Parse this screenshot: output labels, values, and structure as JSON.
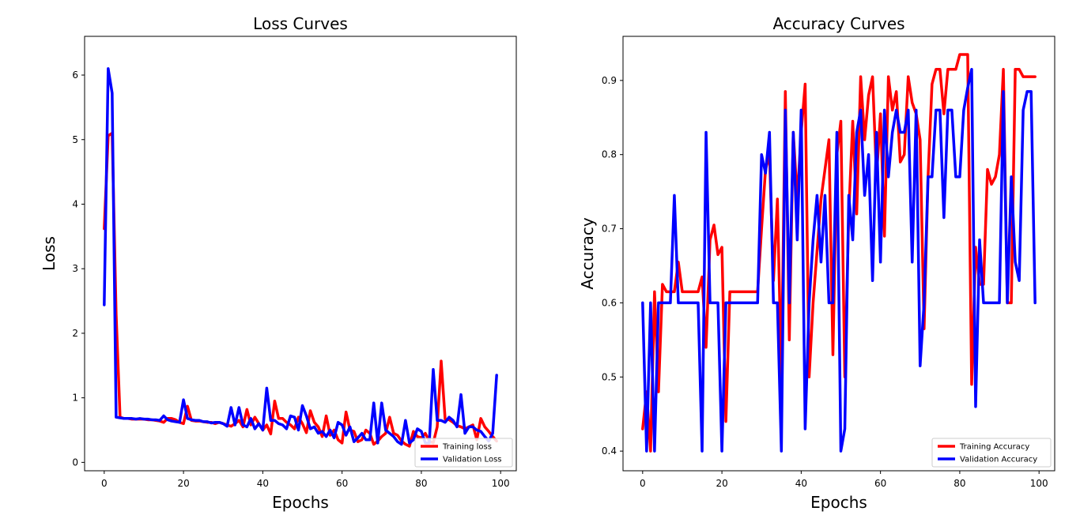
{
  "chart_data": [
    {
      "type": "line",
      "title": "Loss Curves",
      "xlabel": "Epochs",
      "ylabel": "Loss",
      "xlim": [
        -4.95,
        103.95
      ],
      "ylim": [
        -0.13,
        6.6
      ],
      "xticks": [
        0,
        20,
        40,
        60,
        80,
        100
      ],
      "yticks": [
        0,
        1,
        2,
        3,
        4,
        5,
        6
      ],
      "grid": false,
      "legend_position": "lower-right",
      "series": [
        {
          "name": "Training loss",
          "color": "#ff0000",
          "x": [
            0,
            1,
            2,
            3,
            4,
            5,
            6,
            7,
            8,
            9,
            10,
            11,
            12,
            13,
            14,
            15,
            16,
            17,
            18,
            19,
            20,
            21,
            22,
            23,
            24,
            25,
            26,
            27,
            28,
            29,
            30,
            31,
            32,
            33,
            34,
            35,
            36,
            37,
            38,
            39,
            40,
            41,
            42,
            43,
            44,
            45,
            46,
            47,
            48,
            49,
            50,
            51,
            52,
            53,
            54,
            55,
            56,
            57,
            58,
            59,
            60,
            61,
            62,
            63,
            64,
            65,
            66,
            67,
            68,
            69,
            70,
            71,
            72,
            73,
            74,
            75,
            76,
            77,
            78,
            79,
            80,
            81,
            82,
            83,
            84,
            85,
            86,
            87,
            88,
            89,
            90,
            91,
            92,
            93,
            94,
            95,
            96,
            97,
            98,
            99
          ],
          "y": [
            3.62,
            5.06,
            5.1,
            2.3,
            0.7,
            0.68,
            0.68,
            0.67,
            0.67,
            0.67,
            0.67,
            0.66,
            0.66,
            0.65,
            0.64,
            0.62,
            0.68,
            0.68,
            0.66,
            0.62,
            0.6,
            0.87,
            0.65,
            0.64,
            0.64,
            0.63,
            0.62,
            0.62,
            0.6,
            0.62,
            0.6,
            0.58,
            0.56,
            0.6,
            0.65,
            0.55,
            0.82,
            0.58,
            0.7,
            0.6,
            0.5,
            0.58,
            0.44,
            0.95,
            0.68,
            0.68,
            0.62,
            0.58,
            0.52,
            0.7,
            0.6,
            0.46,
            0.8,
            0.62,
            0.55,
            0.4,
            0.72,
            0.42,
            0.5,
            0.35,
            0.3,
            0.78,
            0.5,
            0.48,
            0.32,
            0.35,
            0.5,
            0.45,
            0.28,
            0.33,
            0.4,
            0.45,
            0.7,
            0.45,
            0.42,
            0.33,
            0.28,
            0.25,
            0.48,
            0.4,
            0.38,
            0.45,
            0.33,
            0.3,
            0.55,
            1.57,
            0.67,
            0.66,
            0.62,
            0.57,
            0.55,
            0.52,
            0.55,
            0.58,
            0.35,
            0.68,
            0.55,
            0.48,
            0.4,
            0.33
          ]
        },
        {
          "name": "Validation Loss",
          "color": "#0000ff",
          "x": [
            0,
            1,
            2,
            3,
            4,
            5,
            6,
            7,
            8,
            9,
            10,
            11,
            12,
            13,
            14,
            15,
            16,
            17,
            18,
            19,
            20,
            21,
            22,
            23,
            24,
            25,
            26,
            27,
            28,
            29,
            30,
            31,
            32,
            33,
            34,
            35,
            36,
            37,
            38,
            39,
            40,
            41,
            42,
            43,
            44,
            45,
            46,
            47,
            48,
            49,
            50,
            51,
            52,
            53,
            54,
            55,
            56,
            57,
            58,
            59,
            60,
            61,
            62,
            63,
            64,
            65,
            66,
            67,
            68,
            69,
            70,
            71,
            72,
            73,
            74,
            75,
            76,
            77,
            78,
            79,
            80,
            81,
            82,
            83,
            84,
            85,
            86,
            87,
            88,
            89,
            90,
            91,
            92,
            93,
            94,
            95,
            96,
            97,
            98,
            99
          ],
          "y": [
            2.44,
            6.1,
            5.72,
            0.7,
            0.69,
            0.68,
            0.68,
            0.68,
            0.67,
            0.68,
            0.67,
            0.67,
            0.66,
            0.66,
            0.65,
            0.72,
            0.66,
            0.64,
            0.63,
            0.62,
            0.97,
            0.68,
            0.66,
            0.65,
            0.65,
            0.63,
            0.63,
            0.61,
            0.62,
            0.62,
            0.6,
            0.56,
            0.85,
            0.58,
            0.85,
            0.58,
            0.55,
            0.68,
            0.52,
            0.6,
            0.5,
            1.15,
            0.65,
            0.65,
            0.6,
            0.58,
            0.52,
            0.72,
            0.7,
            0.5,
            0.88,
            0.72,
            0.52,
            0.55,
            0.45,
            0.48,
            0.4,
            0.5,
            0.38,
            0.62,
            0.58,
            0.42,
            0.55,
            0.32,
            0.38,
            0.45,
            0.35,
            0.35,
            0.92,
            0.3,
            0.92,
            0.5,
            0.45,
            0.4,
            0.32,
            0.28,
            0.65,
            0.3,
            0.35,
            0.52,
            0.48,
            0.3,
            0.3,
            1.44,
            0.65,
            0.65,
            0.62,
            0.7,
            0.65,
            0.55,
            1.05,
            0.45,
            0.55,
            0.55,
            0.5,
            0.48,
            0.4,
            0.33,
            0.45,
            1.35
          ]
        }
      ]
    },
    {
      "type": "line",
      "title": "Accuracy Curves",
      "xlabel": "Epochs",
      "ylabel": "Accuracy",
      "xlim": [
        -4.95,
        103.95
      ],
      "ylim": [
        0.3735,
        0.9595
      ],
      "xticks": [
        0,
        20,
        40,
        60,
        80,
        100
      ],
      "yticks": [
        0.4,
        0.5,
        0.6,
        0.7,
        0.8,
        0.9
      ],
      "grid": false,
      "legend_position": "lower-right",
      "series": [
        {
          "name": "Training Accuracy",
          "color": "#ff0000",
          "x": [
            0,
            1,
            2,
            3,
            4,
            5,
            6,
            7,
            8,
            9,
            10,
            11,
            12,
            13,
            14,
            15,
            16,
            17,
            18,
            19,
            20,
            21,
            22,
            23,
            24,
            25,
            26,
            27,
            28,
            29,
            30,
            31,
            32,
            33,
            34,
            35,
            36,
            37,
            38,
            39,
            40,
            41,
            42,
            43,
            44,
            45,
            46,
            47,
            48,
            49,
            50,
            51,
            52,
            53,
            54,
            55,
            56,
            57,
            58,
            59,
            60,
            61,
            62,
            63,
            64,
            65,
            66,
            67,
            68,
            69,
            70,
            71,
            72,
            73,
            74,
            75,
            76,
            77,
            78,
            79,
            80,
            81,
            82,
            83,
            84,
            85,
            86,
            87,
            88,
            89,
            90,
            91,
            92,
            93,
            94,
            95,
            96,
            97,
            98,
            99
          ],
          "y": [
            0.43,
            0.48,
            0.4,
            0.615,
            0.48,
            0.625,
            0.615,
            0.615,
            0.615,
            0.655,
            0.615,
            0.615,
            0.615,
            0.615,
            0.615,
            0.635,
            0.54,
            0.685,
            0.705,
            0.665,
            0.675,
            0.44,
            0.615,
            0.615,
            0.615,
            0.615,
            0.615,
            0.615,
            0.615,
            0.615,
            0.7,
            0.78,
            0.8,
            0.63,
            0.74,
            0.5,
            0.885,
            0.55,
            0.83,
            0.74,
            0.83,
            0.895,
            0.5,
            0.6,
            0.67,
            0.74,
            0.78,
            0.82,
            0.53,
            0.8,
            0.845,
            0.5,
            0.72,
            0.845,
            0.72,
            0.905,
            0.82,
            0.88,
            0.905,
            0.77,
            0.855,
            0.69,
            0.905,
            0.86,
            0.885,
            0.79,
            0.8,
            0.905,
            0.87,
            0.855,
            0.82,
            0.565,
            0.77,
            0.895,
            0.915,
            0.915,
            0.855,
            0.915,
            0.915,
            0.915,
            0.935,
            0.935,
            0.935,
            0.49,
            0.675,
            0.625,
            0.625,
            0.78,
            0.76,
            0.77,
            0.8,
            0.915,
            0.6,
            0.6,
            0.915,
            0.915,
            0.905,
            0.905,
            0.905,
            0.905
          ]
        },
        {
          "name": "Validation Accuracy",
          "color": "#0000ff",
          "x": [
            0,
            1,
            2,
            3,
            4,
            5,
            6,
            7,
            8,
            9,
            10,
            11,
            12,
            13,
            14,
            15,
            16,
            17,
            18,
            19,
            20,
            21,
            22,
            23,
            24,
            25,
            26,
            27,
            28,
            29,
            30,
            31,
            32,
            33,
            34,
            35,
            36,
            37,
            38,
            39,
            40,
            41,
            42,
            43,
            44,
            45,
            46,
            47,
            48,
            49,
            50,
            51,
            52,
            53,
            54,
            55,
            56,
            57,
            58,
            59,
            60,
            61,
            62,
            63,
            64,
            65,
            66,
            67,
            68,
            69,
            70,
            71,
            72,
            73,
            74,
            75,
            76,
            77,
            78,
            79,
            80,
            81,
            82,
            83,
            84,
            85,
            86,
            87,
            88,
            89,
            90,
            91,
            92,
            93,
            94,
            95,
            96,
            97,
            98,
            99
          ],
          "y": [
            0.6,
            0.4,
            0.6,
            0.4,
            0.6,
            0.6,
            0.6,
            0.6,
            0.745,
            0.6,
            0.6,
            0.6,
            0.6,
            0.6,
            0.6,
            0.4,
            0.83,
            0.6,
            0.6,
            0.6,
            0.4,
            0.6,
            0.6,
            0.6,
            0.6,
            0.6,
            0.6,
            0.6,
            0.6,
            0.6,
            0.8,
            0.775,
            0.83,
            0.6,
            0.6,
            0.4,
            0.86,
            0.6,
            0.83,
            0.685,
            0.86,
            0.43,
            0.6,
            0.685,
            0.745,
            0.655,
            0.745,
            0.6,
            0.6,
            0.83,
            0.4,
            0.43,
            0.745,
            0.685,
            0.83,
            0.86,
            0.745,
            0.8,
            0.63,
            0.83,
            0.655,
            0.86,
            0.77,
            0.83,
            0.86,
            0.83,
            0.83,
            0.86,
            0.655,
            0.86,
            0.515,
            0.6,
            0.77,
            0.77,
            0.86,
            0.86,
            0.715,
            0.86,
            0.86,
            0.77,
            0.77,
            0.86,
            0.89,
            0.915,
            0.46,
            0.685,
            0.6,
            0.6,
            0.6,
            0.6,
            0.6,
            0.885,
            0.6,
            0.77,
            0.655,
            0.63,
            0.86,
            0.885,
            0.885,
            0.6
          ]
        }
      ]
    }
  ]
}
